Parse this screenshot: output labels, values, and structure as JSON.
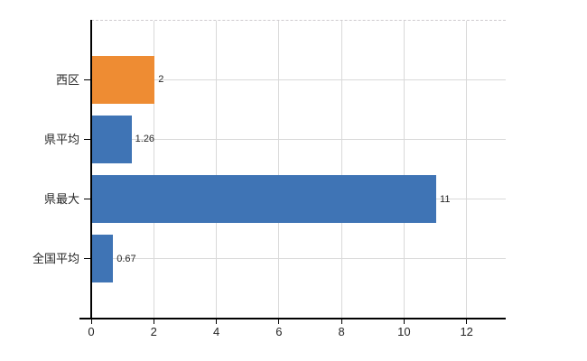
{
  "chart_data": {
    "type": "bar",
    "orientation": "horizontal",
    "title": "",
    "xlabel": "",
    "ylabel": "",
    "categories": [
      "西区",
      "県平均",
      "県最大",
      "全国平均"
    ],
    "values": [
      2,
      1.26,
      11,
      0.67
    ],
    "value_labels": [
      "2",
      "1.26",
      "11",
      "0.67"
    ],
    "bar_colors": [
      "#EE8C33",
      "#3F74B5",
      "#3F74B5",
      "#3F74B5"
    ],
    "highlight_color": "#EE8C33",
    "default_bar_color": "#3F74B5",
    "xlim": [
      0,
      13.25
    ],
    "x_ticks": [
      0,
      2,
      4,
      6,
      8,
      10,
      12
    ],
    "x_tick_labels": [
      "0",
      "2",
      "4",
      "6",
      "8",
      "10",
      "12"
    ],
    "grid": true,
    "legend": "none"
  },
  "colors": {
    "background": "#FFFFFF",
    "grid": "#D9D9D9",
    "top_border": "#CFCBCF",
    "axis": "#000000",
    "text": "#262626"
  }
}
